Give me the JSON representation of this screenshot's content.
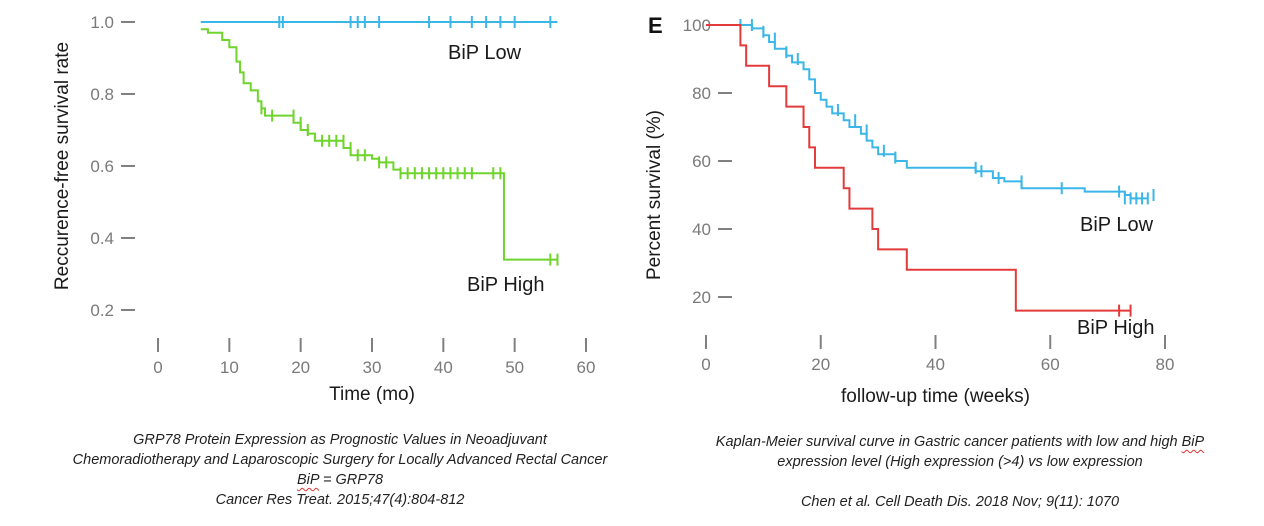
{
  "chart_data": [
    {
      "type": "line",
      "subtype": "kaplan-meier",
      "xlabel": "Time (mo)",
      "ylabel": "Reccurence-free survival rate",
      "xlim": [
        0,
        60
      ],
      "ylim": [
        0.2,
        1.0
      ],
      "xticks": [
        "0",
        "10",
        "20",
        "30",
        "40",
        "50",
        "60"
      ],
      "yticks": [
        "0.2",
        "0.4",
        "0.6",
        "0.8",
        "1.0"
      ],
      "grid": false,
      "series": [
        {
          "name": "BiP Low",
          "label": "BiP Low",
          "color": "#3ab7e8",
          "steps": [
            [
              6,
              1.0
            ],
            [
              56,
              1.0
            ]
          ],
          "censored": [
            [
              17,
              1.0
            ],
            [
              17.5,
              1.0
            ],
            [
              27,
              1.0
            ],
            [
              28,
              1.0
            ],
            [
              29,
              1.0
            ],
            [
              31,
              1.0
            ],
            [
              38,
              1.0
            ],
            [
              41,
              1.0
            ],
            [
              44,
              1.0
            ],
            [
              46,
              1.0
            ],
            [
              48,
              1.0
            ],
            [
              50,
              1.0
            ],
            [
              55,
              1.0
            ]
          ]
        },
        {
          "name": "BiP High",
          "label": "BiP High",
          "color": "#6fd42b",
          "steps": [
            [
              6,
              0.98
            ],
            [
              7,
              0.97
            ],
            [
              9,
              0.95
            ],
            [
              10,
              0.93
            ],
            [
              11,
              0.89
            ],
            [
              11.5,
              0.86
            ],
            [
              12,
              0.83
            ],
            [
              13,
              0.81
            ],
            [
              14,
              0.78
            ],
            [
              14.5,
              0.76
            ],
            [
              15,
              0.74
            ],
            [
              19,
              0.72
            ],
            [
              20,
              0.7
            ],
            [
              21,
              0.69
            ],
            [
              22,
              0.67
            ],
            [
              26,
              0.65
            ],
            [
              27,
              0.63
            ],
            [
              30,
              0.62
            ],
            [
              31,
              0.61
            ],
            [
              33,
              0.59
            ],
            [
              34,
              0.58
            ],
            [
              48.5,
              0.34
            ],
            [
              56,
              0.34
            ]
          ],
          "censored": [
            [
              14.5,
              0.76
            ],
            [
              16,
              0.74
            ],
            [
              19,
              0.74
            ],
            [
              20,
              0.72
            ],
            [
              21,
              0.7
            ],
            [
              23,
              0.67
            ],
            [
              24,
              0.67
            ],
            [
              25,
              0.67
            ],
            [
              26,
              0.67
            ],
            [
              27,
              0.65
            ],
            [
              28,
              0.63
            ],
            [
              29,
              0.63
            ],
            [
              31,
              0.61
            ],
            [
              32,
              0.61
            ],
            [
              34,
              0.58
            ],
            [
              35,
              0.58
            ],
            [
              36,
              0.58
            ],
            [
              37,
              0.58
            ],
            [
              38,
              0.58
            ],
            [
              39,
              0.58
            ],
            [
              40,
              0.58
            ],
            [
              41,
              0.58
            ],
            [
              42,
              0.58
            ],
            [
              43,
              0.58
            ],
            [
              44,
              0.58
            ],
            [
              47,
              0.58
            ],
            [
              48,
              0.58
            ],
            [
              55,
              0.34
            ],
            [
              56,
              0.34
            ]
          ]
        }
      ]
    },
    {
      "type": "line",
      "subtype": "kaplan-meier",
      "panel_letter": "E",
      "xlabel": "follow-up time (weeks)",
      "ylabel": "Percent survival (%)",
      "xlim": [
        0,
        80
      ],
      "ylim": [
        0,
        100
      ],
      "xticks": [
        "0",
        "20",
        "40",
        "60",
        "80"
      ],
      "yticks": [
        "20",
        "40",
        "60",
        "80",
        "100"
      ],
      "grid": false,
      "series": [
        {
          "name": "BiP Low",
          "label": "BiP Low",
          "color": "#3ab7e8",
          "steps": [
            [
              0,
              100
            ],
            [
              8,
              99
            ],
            [
              10,
              97
            ],
            [
              11,
              95
            ],
            [
              12,
              93
            ],
            [
              14,
              91
            ],
            [
              15,
              89
            ],
            [
              17,
              87
            ],
            [
              18,
              84
            ],
            [
              19,
              80
            ],
            [
              20,
              78
            ],
            [
              21,
              76
            ],
            [
              22,
              74
            ],
            [
              24,
              72
            ],
            [
              25,
              70
            ],
            [
              27,
              68
            ],
            [
              28,
              66
            ],
            [
              29,
              64
            ],
            [
              30,
              62
            ],
            [
              33,
              60
            ],
            [
              35,
              58
            ],
            [
              47,
              57
            ],
            [
              50,
              55
            ],
            [
              52,
              54
            ],
            [
              55,
              52
            ],
            [
              66,
              51
            ],
            [
              73,
              50
            ],
            [
              74,
              49
            ],
            [
              77,
              49
            ]
          ],
          "censored": [
            [
              6,
              100
            ],
            [
              8,
              100
            ],
            [
              10,
              98
            ],
            [
              12,
              96
            ],
            [
              14,
              92
            ],
            [
              16,
              90
            ],
            [
              19,
              82
            ],
            [
              23,
              75
            ],
            [
              26,
              72
            ],
            [
              28,
              69
            ],
            [
              31,
              63
            ],
            [
              33,
              61
            ],
            [
              47,
              58
            ],
            [
              48,
              57
            ],
            [
              51,
              55
            ],
            [
              55,
              54
            ],
            [
              62,
              52
            ],
            [
              72,
              51
            ],
            [
              73,
              49
            ],
            [
              74,
              49
            ],
            [
              75,
              49
            ],
            [
              76,
              49
            ],
            [
              77,
              49
            ],
            [
              78,
              50
            ]
          ]
        },
        {
          "name": "BiP High",
          "label": "BiP High",
          "color": "#e33b3b",
          "steps": [
            [
              0,
              100
            ],
            [
              6,
              94
            ],
            [
              7,
              88
            ],
            [
              11,
              82
            ],
            [
              14,
              76
            ],
            [
              17,
              70
            ],
            [
              18,
              64
            ],
            [
              19,
              58
            ],
            [
              24,
              52
            ],
            [
              25,
              46
            ],
            [
              29,
              40
            ],
            [
              30,
              34
            ],
            [
              35,
              28
            ],
            [
              54,
              16
            ],
            [
              73,
              16
            ],
            [
              74,
              16
            ]
          ],
          "censored": [
            [
              72,
              16
            ],
            [
              74,
              16
            ]
          ]
        }
      ]
    }
  ],
  "captions": {
    "left": {
      "line1": "GRP78 Protein Expression as Prognostic Values in Neoadjuvant",
      "line2": "Chemoradiotherapy and Laparoscopic Surgery for Locally Advanced Rectal Cancer",
      "line3_bip": "BiP",
      "line3_rest": " = GRP78",
      "line4": "Cancer Res Treat. 2015;47(4):804-812"
    },
    "right": {
      "line1_pre": "Kaplan-Meier survival curve in Gastric cancer patients with low and high ",
      "line1_bip": "BiP",
      "line2": "expression level (High expression (>4) vs low expression",
      "line3": "Chen et al. Cell Death Dis. 2018 Nov; 9(11): 1070"
    }
  }
}
